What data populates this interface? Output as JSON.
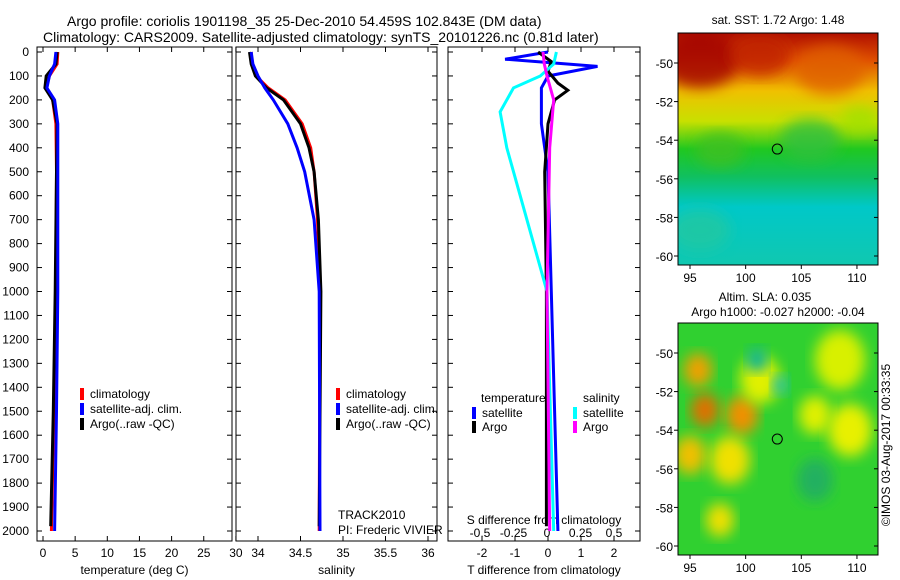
{
  "title_line1": "Argo profile: coriolis 1901198_35 25-Dec-2010 54.459S 102.843E (DM data)",
  "title_line2": "Climatology: CARS2009. Satellite-adjusted climatology: synTS_20101226.nc (0.81d later)",
  "colors": {
    "climatology": "#ff0000",
    "satellite": "#0000ff",
    "argo": "#000000",
    "sal_satellite": "#00ffff",
    "sal_argo": "#ff00ff"
  },
  "chart_data": [
    {
      "type": "line",
      "title": "",
      "xlabel": "temperature (deg C)",
      "ylabel": "",
      "xlim": [
        -1,
        31
      ],
      "ylim": [
        2040,
        0
      ],
      "xticks": [
        "0",
        "5",
        "10",
        "15",
        "20",
        "25",
        "30"
      ],
      "yticks": [
        "0",
        "100",
        "200",
        "300",
        "400",
        "500",
        "600",
        "700",
        "800",
        "900",
        "1000",
        "1100",
        "1200",
        "1300",
        "1400",
        "1500",
        "1600",
        "1700",
        "1800",
        "1900",
        "2000"
      ],
      "legend": [
        "climatology",
        "satellite-adj. clim.",
        "Argo(..raw -QC)"
      ],
      "series": [
        {
          "name": "climatology",
          "color": "#ff0000",
          "depth": [
            0,
            50,
            100,
            150,
            200,
            300,
            500,
            1000,
            1500,
            2000
          ],
          "values": [
            2.3,
            2.2,
            1.0,
            0.5,
            1.5,
            2.0,
            2.1,
            2.0,
            1.7,
            1.3
          ]
        },
        {
          "name": "Argo(..raw -QC)",
          "color": "#000000",
          "depth": [
            0,
            50,
            100,
            150,
            200,
            300,
            500,
            1000,
            1500,
            1980
          ],
          "values": [
            2.2,
            2.0,
            0.5,
            0.3,
            1.5,
            2.2,
            2.1,
            1.9,
            1.6,
            1.2
          ]
        },
        {
          "name": "satellite-adj. clim.",
          "color": "#0000ff",
          "depth": [
            0,
            50,
            100,
            150,
            200,
            300,
            500,
            1000,
            1500,
            2000
          ],
          "values": [
            2.0,
            1.8,
            1.0,
            0.6,
            1.8,
            2.3,
            2.3,
            2.3,
            2.1,
            1.8
          ]
        }
      ]
    },
    {
      "type": "line",
      "xlabel": "salinity",
      "xlim": [
        33.8,
        36.1
      ],
      "ylim": [
        2040,
        0
      ],
      "xticks": [
        "34",
        "34.5",
        "35",
        "35.5",
        "36"
      ],
      "legend": [
        "climatology",
        "satellite-adj. clim.",
        "Argo(..raw -QC)"
      ],
      "annotations": [
        "TRACK2010",
        "PI: Frederic VIVIER"
      ],
      "series": [
        {
          "name": "climatology",
          "color": "#ff0000",
          "depth": [
            0,
            50,
            100,
            150,
            200,
            300,
            400,
            500,
            700,
            1000,
            2000
          ],
          "values": [
            33.92,
            33.93,
            33.98,
            34.12,
            34.32,
            34.52,
            34.62,
            34.66,
            34.7,
            34.73,
            34.72
          ]
        },
        {
          "name": "Argo(..raw -QC)",
          "color": "#000000",
          "depth": [
            0,
            50,
            100,
            150,
            200,
            300,
            400,
            500,
            700,
            1000,
            1980
          ],
          "values": [
            33.9,
            33.92,
            33.97,
            34.1,
            34.3,
            34.5,
            34.6,
            34.66,
            34.71,
            34.74,
            34.72
          ]
        },
        {
          "name": "satellite-adj. clim.",
          "color": "#0000ff",
          "depth": [
            0,
            50,
            100,
            150,
            200,
            300,
            400,
            500,
            700,
            900,
            1000,
            2000
          ],
          "values": [
            33.92,
            33.94,
            34.0,
            34.08,
            34.18,
            34.35,
            34.46,
            34.55,
            34.66,
            34.7,
            34.72,
            34.73
          ]
        }
      ]
    },
    {
      "type": "line",
      "xlabel": "T difference from climatology",
      "x2label": "S difference from climatology",
      "xlim": [
        -3,
        3
      ],
      "x2lim": [
        -0.75,
        0.75
      ],
      "ylim": [
        2040,
        0
      ],
      "xticks": [
        "-2",
        "-1",
        "0",
        "1",
        "2"
      ],
      "x2ticks": [
        "-0.5",
        "-0.25",
        "0",
        "0.25",
        "0.5"
      ],
      "legend_titles": [
        "temperature",
        "salinity"
      ],
      "legend": [
        "satellite",
        "Argo",
        "satellite",
        "Argo"
      ],
      "series": [
        {
          "name": "temperature satellite",
          "axis": "T",
          "color": "#0000ff",
          "depth": [
            0,
            30,
            60,
            100,
            150,
            300,
            500,
            1000,
            2000
          ],
          "values": [
            0,
            -1.3,
            1.5,
            0,
            -0.2,
            -0.2,
            0,
            0.1,
            0.3
          ]
        },
        {
          "name": "temperature Argo",
          "axis": "T",
          "color": "#000000",
          "depth": [
            0,
            40,
            80,
            130,
            160,
            200,
            300,
            500,
            1000,
            1980
          ],
          "values": [
            -0.3,
            0.1,
            0,
            0.3,
            0.6,
            0.2,
            0,
            -0.1,
            -0.05,
            -0.05
          ]
        },
        {
          "name": "salinity satellite",
          "axis": "S",
          "color": "#00ffff",
          "depth": [
            0,
            50,
            100,
            150,
            250,
            400,
            600,
            900,
            1000,
            2000
          ],
          "values": [
            0.07,
            0.05,
            -0.05,
            -0.25,
            -0.35,
            -0.3,
            -0.2,
            -0.05,
            0,
            0.05
          ]
        },
        {
          "name": "salinity Argo",
          "axis": "S",
          "color": "#ff00ff",
          "depth": [
            0,
            50,
            100,
            200,
            400,
            1000,
            2000
          ],
          "values": [
            -0.03,
            -0.02,
            0,
            0.05,
            0.02,
            0,
            0.02
          ]
        }
      ]
    },
    {
      "type": "heatmap",
      "title": "sat. SST: 1.72 Argo: 1.48",
      "xticks": [
        "95",
        "100",
        "105",
        "110"
      ],
      "yticks": [
        "-50",
        "-52",
        "-54",
        "-56",
        "-58",
        "-60"
      ],
      "marker": {
        "lon": 102.843,
        "lat": -54.459
      }
    },
    {
      "type": "heatmap",
      "title": "Altim. SLA: 0.035",
      "subtitle": "Argo h1000: -0.027 h2000: -0.04",
      "xticks": [
        "95",
        "100",
        "105",
        "110"
      ],
      "yticks": [
        "-50",
        "-52",
        "-54",
        "-56",
        "-58",
        "-60"
      ],
      "marker": {
        "lon": 102.843,
        "lat": -54.459
      }
    }
  ],
  "footer": "©IMOS 03-Aug-2017 00:33:35"
}
